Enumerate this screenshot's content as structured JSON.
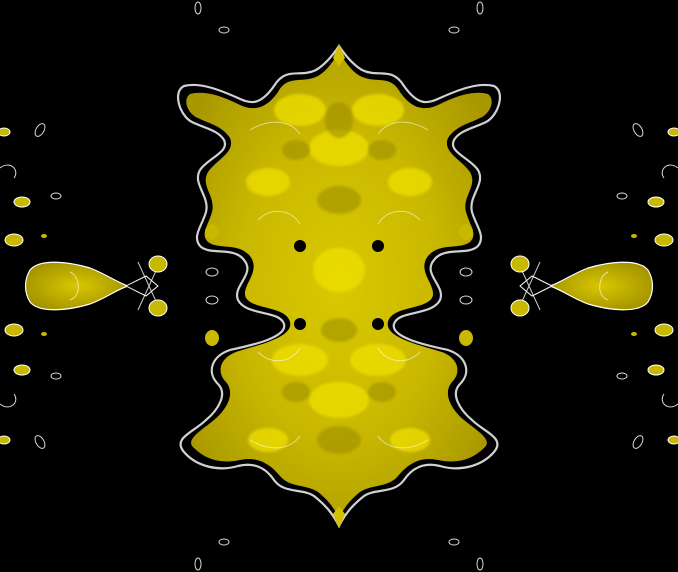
{
  "image": {
    "colors": {
      "background": "#000000",
      "fill_main": "#cbbb00",
      "fill_bright": "#f3e400",
      "fill_dark": "#7d6f00",
      "contour": "#ffffff"
    }
  }
}
